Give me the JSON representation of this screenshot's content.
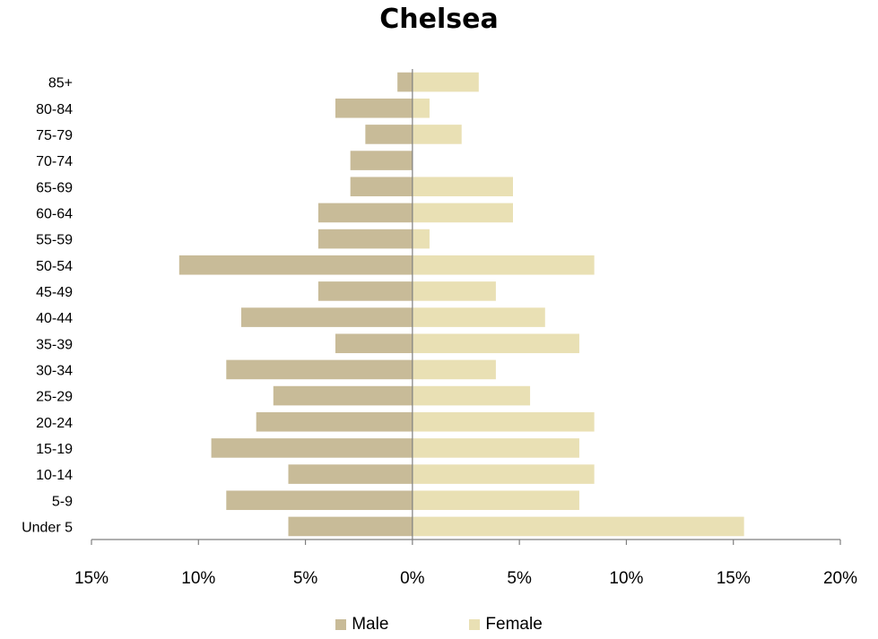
{
  "chart_data": {
    "type": "bar",
    "orientation": "horizontal",
    "title": "Chelsea",
    "categories": [
      "85+",
      "80-84",
      "75-79",
      "70-74",
      "65-69",
      "60-64",
      "55-59",
      "50-54",
      "45-49",
      "40-44",
      "35-39",
      "30-34",
      "25-29",
      "20-24",
      "15-19",
      "10-14",
      "5-9",
      "Under 5"
    ],
    "series": [
      {
        "name": "Male",
        "color": "#c8bb98",
        "values": [
          -0.7,
          -3.6,
          -2.2,
          -2.9,
          -2.9,
          -4.4,
          -4.4,
          -10.9,
          -4.4,
          -8.0,
          -3.6,
          -8.7,
          -6.5,
          -7.3,
          -9.4,
          -5.8,
          -8.7,
          -5.8
        ]
      },
      {
        "name": "Female",
        "color": "#e9e0b4",
        "values": [
          3.1,
          0.8,
          2.3,
          0.0,
          4.7,
          4.7,
          0.8,
          8.5,
          3.9,
          6.2,
          7.8,
          3.9,
          5.5,
          8.5,
          7.8,
          8.5,
          7.8,
          15.5
        ]
      }
    ],
    "xlim": [
      -15,
      20
    ],
    "xticks": [
      -15,
      -10,
      -5,
      0,
      5,
      10,
      15,
      20
    ],
    "xtick_labels": [
      "15%",
      "10%",
      "5%",
      "0%",
      "5%",
      "10%",
      "15%",
      "20%"
    ],
    "legend": "bottom",
    "grid": false,
    "xlabel": "",
    "ylabel": ""
  }
}
